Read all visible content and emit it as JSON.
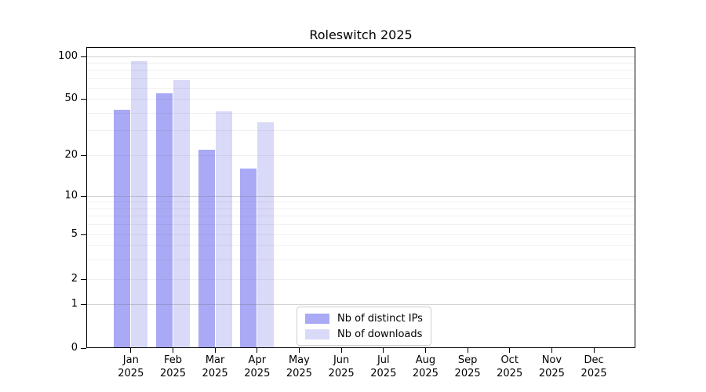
{
  "title": "Roleswitch 2025",
  "chart_data": {
    "type": "bar",
    "categories": [
      "Jan",
      "Feb",
      "Mar",
      "Apr",
      "May",
      "Jun",
      "Jul",
      "Aug",
      "Sep",
      "Oct",
      "Nov",
      "Dec"
    ],
    "category_sublabel": "2025",
    "series": [
      {
        "name": "Nb of distinct IPs",
        "color": "#a9a9f6",
        "values": [
          42,
          55,
          22,
          16,
          0,
          0,
          0,
          0,
          0,
          0,
          0,
          0
        ]
      },
      {
        "name": "Nb of downloads",
        "color": "#d9d9f8",
        "values": [
          93,
          68,
          41,
          34,
          0,
          0,
          0,
          0,
          0,
          0,
          0,
          0
        ]
      }
    ],
    "yaxis": {
      "scale": "symlog",
      "tick_labels": [
        0,
        1,
        2,
        5,
        10,
        20,
        50,
        100
      ],
      "major_gridlines": [
        1,
        10,
        100
      ],
      "minor_gridlines": [
        2,
        3,
        4,
        5,
        6,
        7,
        8,
        9,
        20,
        30,
        40,
        50,
        60,
        70,
        80,
        90
      ],
      "ylim": [
        0,
        120
      ]
    },
    "legend_position": "lower center",
    "grid": true
  },
  "colors": {
    "axis": "#000000",
    "background": "#ffffff",
    "major_grid": "#cccccc",
    "minor_grid": "#ebebeb"
  }
}
